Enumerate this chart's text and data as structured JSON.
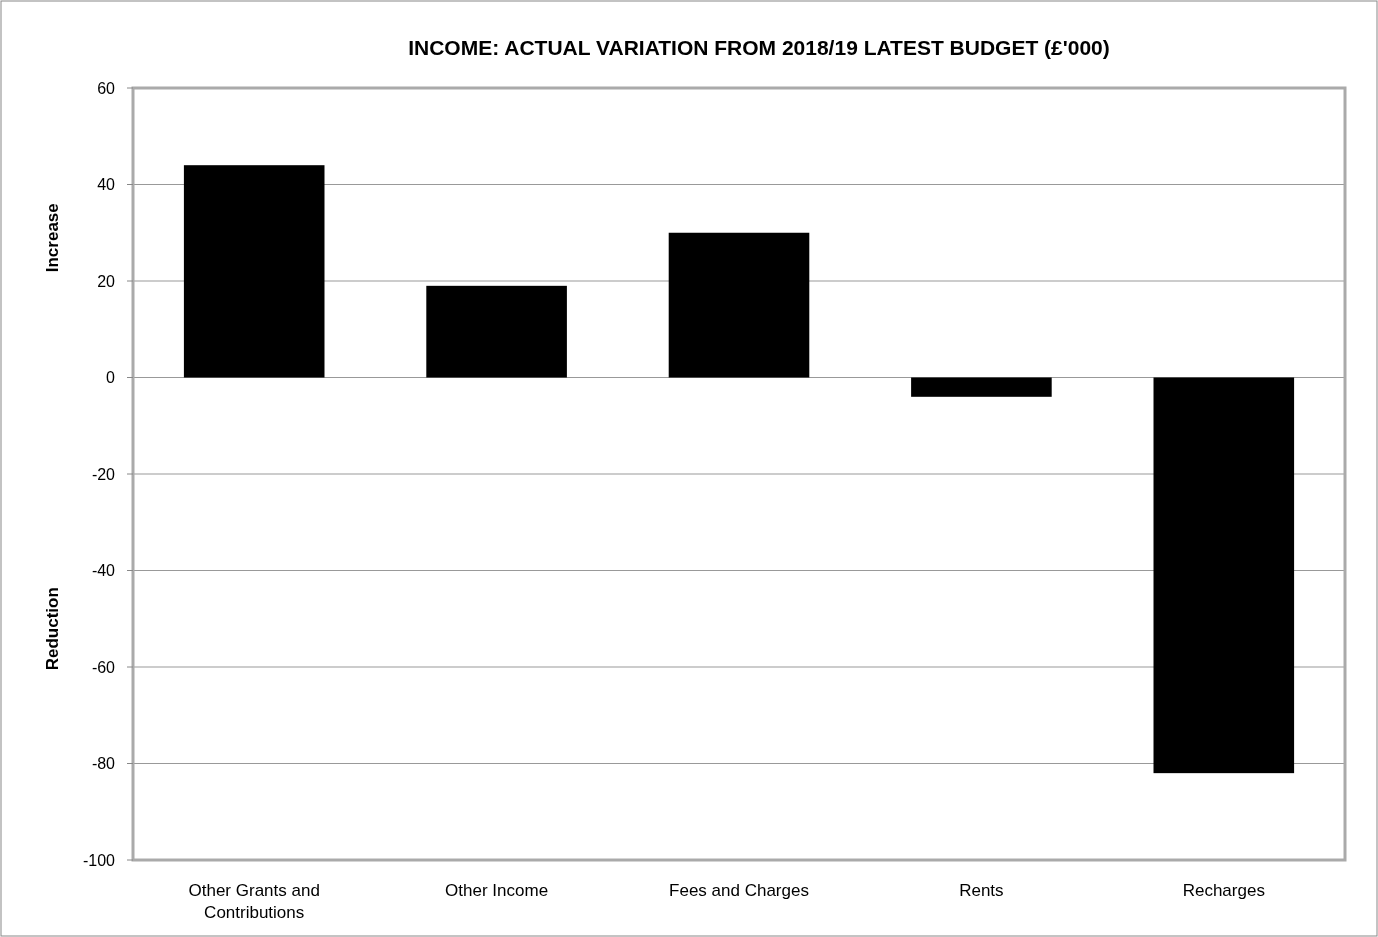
{
  "chart_data": {
    "type": "bar",
    "title": "INCOME: ACTUAL VARIATION FROM 2018/19 LATEST BUDGET (£'000)",
    "categories": [
      "Other Grants and Contributions",
      "Other Income",
      "Fees and Charges",
      "Rents",
      "Recharges"
    ],
    "values": [
      44,
      19,
      30,
      -4,
      -82
    ],
    "color": "#000000",
    "ylim": [
      -100,
      60
    ],
    "yticks": [
      -100,
      -80,
      -60,
      -40,
      -20,
      0,
      20,
      40,
      60
    ],
    "grid": "y",
    "ylabel": "Increase",
    "annotations": [
      "Reduction"
    ]
  }
}
